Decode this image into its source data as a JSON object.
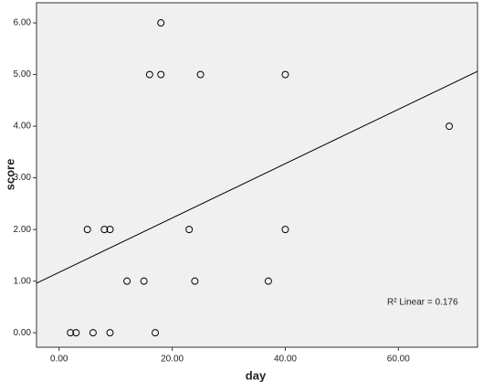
{
  "chart_data": {
    "type": "scatter",
    "x_label": "day",
    "y_label": "score",
    "annotation": "R² Linear = 0.176",
    "x": [
      2,
      3,
      6,
      9,
      17,
      12,
      15,
      24,
      37,
      5,
      8,
      9,
      23,
      40,
      69,
      16,
      18,
      25,
      40,
      18
    ],
    "values": [
      0,
      0,
      0,
      0,
      0,
      1,
      1,
      1,
      1,
      2,
      2,
      2,
      2,
      2,
      4,
      5,
      5,
      5,
      5,
      6
    ],
    "fit": {
      "intercept": 1.17,
      "slope": 0.0526
    },
    "xlim": [
      -4,
      74
    ],
    "ylim": [
      -0.28,
      6.39
    ],
    "xticks": [
      {
        "value": 0,
        "label": "0.00"
      },
      {
        "value": 20,
        "label": "20.00"
      },
      {
        "value": 40,
        "label": "40.00"
      },
      {
        "value": 60,
        "label": "60.00"
      }
    ],
    "yticks": [
      {
        "value": 0,
        "label": "0.00"
      },
      {
        "value": 1,
        "label": "1.00"
      },
      {
        "value": 2,
        "label": "2.00"
      },
      {
        "value": 3,
        "label": "3.00"
      },
      {
        "value": 4,
        "label": "4.00"
      },
      {
        "value": 5,
        "label": "5.00"
      },
      {
        "value": 6,
        "label": "6.00"
      }
    ],
    "background": "#f0f0f0",
    "color": "#000000"
  }
}
